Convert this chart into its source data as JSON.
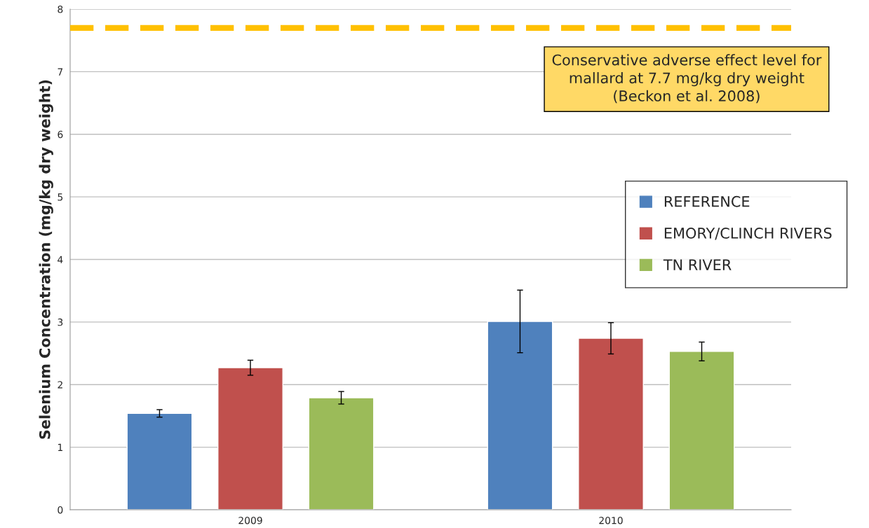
{
  "chart_data": {
    "type": "bar",
    "ylabel": "Selenium Concentration (mg/kg dry weight)",
    "categories": [
      "2009",
      "2010"
    ],
    "series": [
      {
        "name": "REFERENCE",
        "color": "#4f81bd",
        "values": [
          1.54,
          3.01
        ],
        "errors": [
          0.06,
          0.5
        ]
      },
      {
        "name": "EMORY/CLINCH RIVERS",
        "color": "#c0504d",
        "values": [
          2.27,
          2.74
        ],
        "errors": [
          0.12,
          0.25
        ]
      },
      {
        "name": "TN RIVER",
        "color": "#9bbb59",
        "values": [
          1.79,
          2.53
        ],
        "errors": [
          0.1,
          0.15
        ]
      }
    ],
    "ylim": [
      0,
      8
    ],
    "yticks": [
      0,
      1,
      2,
      3,
      4,
      5,
      6,
      7,
      8
    ],
    "grid": "y",
    "legend": "right",
    "ref_lines": [
      {
        "axis": "y",
        "value": 7.7,
        "label": "Conservative adverse effect level for\nmallard at 7.7 mg/kg dry weight\n(Beckon et al. 2008)",
        "color": "#ffc000",
        "line_style": "dashed"
      }
    ]
  }
}
